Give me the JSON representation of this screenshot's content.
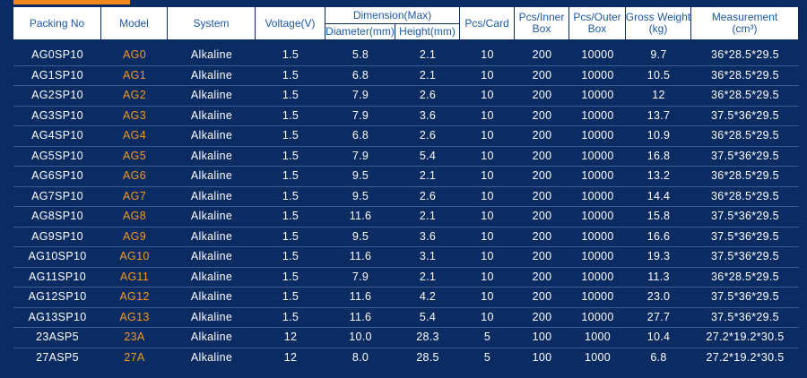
{
  "table": {
    "header": [
      {
        "lines": [
          "Packing No"
        ]
      },
      {
        "lines": [
          "Model"
        ]
      },
      {
        "lines": [
          "System"
        ]
      },
      {
        "lines": [
          "Voltage(V)"
        ]
      },
      {
        "group": "Dimension(Max)",
        "sub": [
          "Diameter(mm)",
          "Height(mm)"
        ]
      },
      {
        "lines": [
          "Pcs/Card"
        ]
      },
      {
        "lines": [
          "Pcs/Inner",
          "Box"
        ]
      },
      {
        "lines": [
          "Pcs/Outer",
          "Box"
        ]
      },
      {
        "lines": [
          "Gross Weight",
          "(kg)"
        ]
      },
      {
        "lines": [
          "Measurement",
          "(cm³)"
        ]
      }
    ],
    "rows": [
      [
        "AG0SP10",
        "AG0",
        "Alkaline",
        "1.5",
        "5.8",
        "2.1",
        "10",
        "200",
        "10000",
        "9.7",
        "36*28.5*29.5"
      ],
      [
        "AG1SP10",
        "AG1",
        "Alkaline",
        "1.5",
        "6.8",
        "2.1",
        "10",
        "200",
        "10000",
        "10.5",
        "36*28.5*29.5"
      ],
      [
        "AG2SP10",
        "AG2",
        "Alkaline",
        "1.5",
        "7.9",
        "2.6",
        "10",
        "200",
        "10000",
        "12",
        "36*28.5*29.5"
      ],
      [
        "AG3SP10",
        "AG3",
        "Alkaline",
        "1.5",
        "7.9",
        "3.6",
        "10",
        "200",
        "10000",
        "13.7",
        "37.5*36*29.5"
      ],
      [
        "AG4SP10",
        "AG4",
        "Alkaline",
        "1.5",
        "6.8",
        "2.6",
        "10",
        "200",
        "10000",
        "10.9",
        "36*28.5*29.5"
      ],
      [
        "AG5SP10",
        "AG5",
        "Alkaline",
        "1.5",
        "7.9",
        "5.4",
        "10",
        "200",
        "10000",
        "16.8",
        "37.5*36*29.5"
      ],
      [
        "AG6SP10",
        "AG6",
        "Alkaline",
        "1.5",
        "9.5",
        "2.1",
        "10",
        "200",
        "10000",
        "13.2",
        "36*28.5*29.5"
      ],
      [
        "AG7SP10",
        "AG7",
        "Alkaline",
        "1.5",
        "9.5",
        "2.6",
        "10",
        "200",
        "10000",
        "14.4",
        "36*28.5*29.5"
      ],
      [
        "AG8SP10",
        "AG8",
        "Alkaline",
        "1.5",
        "11.6",
        "2.1",
        "10",
        "200",
        "10000",
        "15.8",
        "37.5*36*29.5"
      ],
      [
        "AG9SP10",
        "AG9",
        "Alkaline",
        "1.5",
        "9.5",
        "3.6",
        "10",
        "200",
        "10000",
        "16.6",
        "37.5*36*29.5"
      ],
      [
        "AG10SP10",
        "AG10",
        "Alkaline",
        "1.5",
        "11.6",
        "3.1",
        "10",
        "200",
        "10000",
        "19.3",
        "37.5*36*29.5"
      ],
      [
        "AG11SP10",
        "AG11",
        "Alkaline",
        "1.5",
        "7.9",
        "2.1",
        "10",
        "200",
        "10000",
        "11.3",
        "36*28.5*29.5"
      ],
      [
        "AG12SP10",
        "AG12",
        "Alkaline",
        "1.5",
        "11.6",
        "4.2",
        "10",
        "200",
        "10000",
        "23.0",
        "37.5*36*29.5"
      ],
      [
        "AG13SP10",
        "AG13",
        "Alkaline",
        "1.5",
        "11.6",
        "5.4",
        "10",
        "200",
        "10000",
        "27.7",
        "37.5*36*29.5"
      ],
      [
        "23ASP5",
        "23A",
        "Alkaline",
        "12",
        "10.0",
        "28.3",
        "5",
        "100",
        "1000",
        "10.4",
        "27.2*19.2*30.5"
      ],
      [
        "27ASP5",
        "27A",
        "Alkaline",
        "12",
        "8.0",
        "28.5",
        "5",
        "100",
        "1000",
        "6.8",
        "27.2*19.2*30.5"
      ]
    ]
  }
}
